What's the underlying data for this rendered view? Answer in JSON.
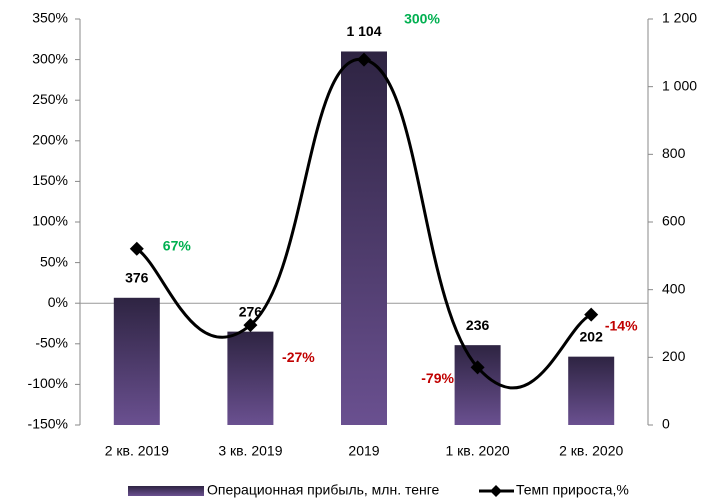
{
  "chart_data": {
    "type": "bar-line",
    "categories": [
      "2 кв. 2019",
      "3 кв. 2019",
      "2019",
      "1 кв. 2020",
      "2 кв. 2020"
    ],
    "series": [
      {
        "name": "Операционная прибыль, млн. тенге",
        "type": "bar",
        "axis": "y2",
        "color": "#4a3a66",
        "values": [
          376,
          276,
          1104,
          236,
          202
        ],
        "value_labels": [
          "376",
          "276",
          "1 104",
          "236",
          "202"
        ]
      },
      {
        "name": "Темп прироста,%",
        "type": "line",
        "axis": "y",
        "color": "#000000",
        "values": [
          67,
          -27,
          300,
          -79,
          -14
        ],
        "value_labels": [
          "67%",
          "-27%",
          "300%",
          "-79%",
          "-14%"
        ]
      }
    ],
    "ylim": [
      -150,
      350
    ],
    "yticks": [
      {
        "value": -150,
        "label": "-150%"
      },
      {
        "value": -100,
        "label": "-100%"
      },
      {
        "value": -50,
        "label": "-50%"
      },
      {
        "value": 0,
        "label": "0%"
      },
      {
        "value": 50,
        "label": "50%"
      },
      {
        "value": 100,
        "label": "100%"
      },
      {
        "value": 150,
        "label": "150%"
      },
      {
        "value": 200,
        "label": "200%"
      },
      {
        "value": 250,
        "label": "250%"
      },
      {
        "value": 300,
        "label": "300%"
      },
      {
        "value": 350,
        "label": "350%"
      }
    ],
    "y2lim": [
      0,
      1200
    ],
    "y2ticks": [
      0,
      200,
      400,
      600,
      800,
      {
        "value": 1000,
        "label": "1 000"
      },
      {
        "value": 1200,
        "label": "1 200"
      }
    ],
    "positive_label_color": "#00b050",
    "negative_label_color": "#c00000"
  }
}
